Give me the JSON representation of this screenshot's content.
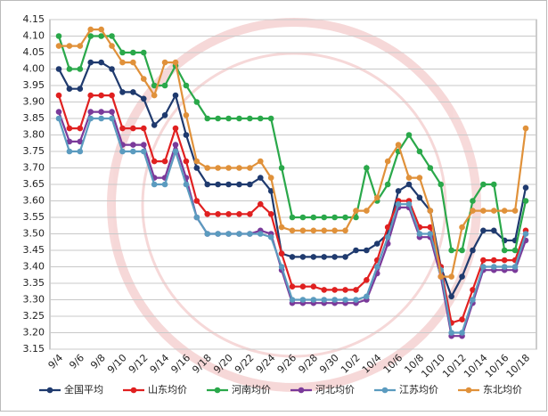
{
  "chart_data": {
    "type": "line",
    "categories": [
      "9/4",
      null,
      "9/6",
      null,
      "9/8",
      null,
      "9/10",
      null,
      "9/12",
      null,
      "9/14",
      null,
      "9/16",
      null,
      "9/18",
      null,
      "9/20",
      null,
      "9/22",
      null,
      "9/24",
      null,
      "9/26",
      null,
      "9/28",
      null,
      "9/30",
      null,
      "10/2",
      null,
      "10/4",
      null,
      "10/6",
      null,
      "10/8",
      null,
      "10/10",
      null,
      "10/12",
      null,
      "10/14",
      null,
      "10/16",
      null,
      "10/18"
    ],
    "ylim": [
      3.15,
      4.15
    ],
    "yticks": [
      3.15,
      {
        "value": 3.2,
        "label": "3.20"
      },
      3.25,
      {
        "value": 3.3,
        "label": "3.30"
      },
      3.35,
      {
        "value": 3.4,
        "label": "3.40"
      },
      3.45,
      {
        "value": 3.5,
        "label": "3.50"
      },
      3.55,
      {
        "value": 3.6,
        "label": "3.60"
      },
      3.65,
      {
        "value": 3.7,
        "label": "3.70"
      },
      3.75,
      {
        "value": 3.8,
        "label": "3.80"
      },
      3.85,
      {
        "value": 3.9,
        "label": "3.90"
      },
      3.95,
      {
        "value": 4.0,
        "label": "4.00"
      },
      4.05,
      {
        "value": 4.1,
        "label": "4.10"
      },
      4.15
    ],
    "grid": true,
    "legend": "bottom",
    "series": [
      {
        "name": "全国平均",
        "color": "#1f3a6e",
        "values": [
          4.0,
          3.94,
          3.94,
          4.02,
          4.02,
          4.0,
          3.93,
          3.93,
          3.91,
          3.83,
          3.86,
          3.92,
          3.8,
          3.7,
          3.65,
          3.65,
          3.65,
          3.65,
          3.65,
          3.67,
          3.63,
          3.44,
          3.43,
          3.43,
          3.43,
          3.43,
          3.43,
          3.43,
          3.45,
          3.45,
          3.47,
          3.5,
          3.63,
          3.65,
          3.61,
          3.57,
          3.4,
          3.31,
          3.37,
          3.45,
          3.51,
          3.51,
          3.48,
          3.48,
          3.64
        ]
      },
      {
        "name": "山东均价",
        "color": "#e02020",
        "values": [
          3.92,
          3.82,
          3.82,
          3.92,
          3.92,
          3.92,
          3.82,
          3.82,
          3.82,
          3.72,
          3.72,
          3.82,
          3.72,
          3.6,
          3.56,
          3.56,
          3.56,
          3.56,
          3.56,
          3.59,
          3.56,
          3.44,
          3.34,
          3.34,
          3.34,
          3.33,
          3.33,
          3.33,
          3.33,
          3.36,
          3.42,
          3.52,
          3.6,
          3.6,
          3.52,
          3.52,
          3.4,
          3.23,
          3.24,
          3.33,
          3.42,
          3.42,
          3.42,
          3.42,
          3.51
        ]
      },
      {
        "name": "河南均价",
        "color": "#2aa84a",
        "values": [
          4.1,
          4.0,
          4.0,
          4.1,
          4.1,
          4.1,
          4.05,
          4.05,
          4.05,
          3.95,
          3.95,
          4.01,
          3.95,
          3.9,
          3.85,
          3.85,
          3.85,
          3.85,
          3.85,
          3.85,
          3.85,
          3.7,
          3.55,
          3.55,
          3.55,
          3.55,
          3.55,
          3.55,
          3.55,
          3.7,
          3.6,
          3.65,
          3.75,
          3.8,
          3.75,
          3.7,
          3.65,
          3.45,
          3.45,
          3.6,
          3.65,
          3.65,
          3.45,
          3.45,
          3.6
        ]
      },
      {
        "name": "河北均价",
        "color": "#7a3a9a",
        "values": [
          3.87,
          3.78,
          3.78,
          3.87,
          3.87,
          3.87,
          3.77,
          3.77,
          3.77,
          3.67,
          3.67,
          3.77,
          3.67,
          3.55,
          3.5,
          3.5,
          3.5,
          3.5,
          3.5,
          3.51,
          3.5,
          3.39,
          3.29,
          3.29,
          3.29,
          3.29,
          3.29,
          3.29,
          3.29,
          3.3,
          3.38,
          3.47,
          3.58,
          3.58,
          3.49,
          3.49,
          3.37,
          3.19,
          3.19,
          3.29,
          3.39,
          3.39,
          3.39,
          3.39,
          3.48
        ]
      },
      {
        "name": "江苏均价",
        "color": "#5b9bbf",
        "values": [
          3.85,
          3.75,
          3.75,
          3.85,
          3.85,
          3.85,
          3.75,
          3.75,
          3.75,
          3.65,
          3.65,
          3.75,
          3.65,
          3.55,
          3.5,
          3.5,
          3.5,
          3.5,
          3.5,
          3.5,
          3.49,
          3.4,
          3.3,
          3.3,
          3.3,
          3.3,
          3.3,
          3.3,
          3.3,
          3.31,
          3.4,
          3.49,
          3.59,
          3.59,
          3.5,
          3.5,
          3.39,
          3.2,
          3.2,
          3.3,
          3.4,
          3.4,
          3.4,
          3.4,
          3.5
        ]
      },
      {
        "name": "东北均价",
        "color": "#e0913a",
        "values": [
          4.07,
          4.07,
          4.07,
          4.12,
          4.12,
          4.07,
          4.02,
          4.02,
          3.97,
          3.92,
          4.02,
          4.02,
          3.86,
          3.72,
          3.7,
          3.7,
          3.7,
          3.7,
          3.7,
          3.72,
          3.67,
          3.52,
          3.51,
          3.51,
          3.51,
          3.51,
          3.51,
          3.51,
          3.57,
          3.57,
          3.61,
          3.72,
          3.77,
          3.67,
          3.67,
          3.57,
          3.37,
          3.37,
          3.52,
          3.57,
          3.57,
          3.57,
          3.57,
          3.57,
          3.82
        ]
      }
    ]
  }
}
